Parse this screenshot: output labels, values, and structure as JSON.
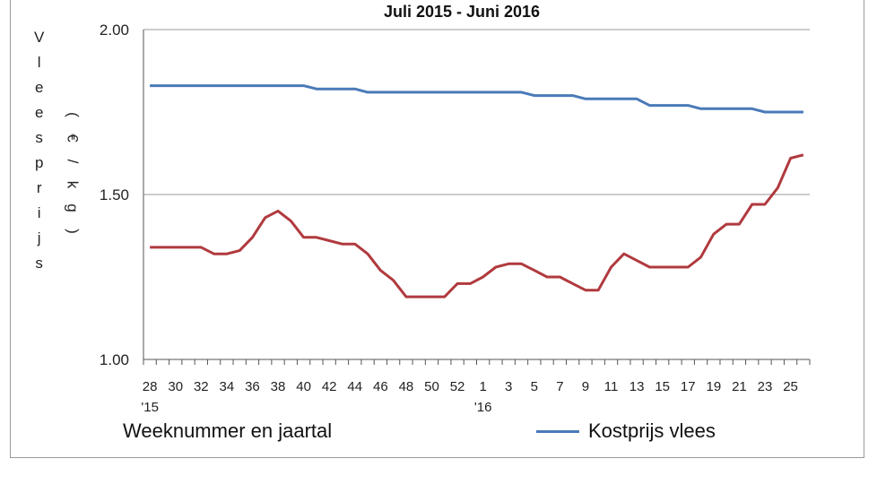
{
  "chart_data": {
    "type": "line",
    "title": "Juli 2015 - Juni 2016",
    "ylabel": "Vleesprijs",
    "yunit": "(€/kg)",
    "xlabel": "Weeknummer en jaartal",
    "ylim": [
      1.0,
      2.0
    ],
    "yticks": [
      "1.00",
      "1.50",
      "2.00"
    ],
    "grid": true,
    "legend_position": "bottom-right",
    "weeks": [
      "28",
      "29",
      "30",
      "31",
      "32",
      "33",
      "34",
      "35",
      "36",
      "37",
      "38",
      "39",
      "40",
      "41",
      "42",
      "43",
      "44",
      "45",
      "46",
      "47",
      "48",
      "49",
      "50",
      "51",
      "52",
      "53",
      "1",
      "2",
      "3",
      "4",
      "5",
      "6",
      "7",
      "8",
      "9",
      "10",
      "11",
      "12",
      "13",
      "14",
      "15",
      "16",
      "17",
      "18",
      "19",
      "20",
      "21",
      "22",
      "23",
      "24",
      "25",
      "26"
    ],
    "xtick_labels": [
      "28",
      "30",
      "32",
      "34",
      "36",
      "38",
      "40",
      "42",
      "44",
      "46",
      "48",
      "50",
      "52",
      "1",
      "3",
      "5",
      "7",
      "9",
      "11",
      "13",
      "15",
      "17",
      "19",
      "21",
      "23",
      "25"
    ],
    "year_labels": [
      "'15",
      "'16"
    ],
    "series": [
      {
        "name": "Kostprijs vlees",
        "color": "#4a7ab8",
        "values": [
          1.83,
          1.83,
          1.83,
          1.83,
          1.83,
          1.83,
          1.83,
          1.83,
          1.83,
          1.83,
          1.83,
          1.83,
          1.83,
          1.82,
          1.82,
          1.82,
          1.82,
          1.81,
          1.81,
          1.81,
          1.81,
          1.81,
          1.81,
          1.81,
          1.81,
          1.81,
          1.81,
          1.81,
          1.81,
          1.81,
          1.8,
          1.8,
          1.8,
          1.8,
          1.79,
          1.79,
          1.79,
          1.79,
          1.79,
          1.77,
          1.77,
          1.77,
          1.77,
          1.76,
          1.76,
          1.76,
          1.76,
          1.76,
          1.75,
          1.75,
          1.75,
          1.75
        ]
      },
      {
        "name": "",
        "color": "#b03a3e",
        "values": [
          1.34,
          1.34,
          1.34,
          1.34,
          1.34,
          1.32,
          1.32,
          1.33,
          1.37,
          1.43,
          1.45,
          1.42,
          1.37,
          1.37,
          1.36,
          1.35,
          1.35,
          1.32,
          1.27,
          1.24,
          1.19,
          1.19,
          1.19,
          1.19,
          1.23,
          1.23,
          1.25,
          1.28,
          1.29,
          1.29,
          1.27,
          1.25,
          1.25,
          1.23,
          1.21,
          1.21,
          1.28,
          1.32,
          1.3,
          1.28,
          1.28,
          1.28,
          1.28,
          1.31,
          1.38,
          1.41,
          1.41,
          1.47,
          1.47,
          1.52,
          1.61,
          1.62
        ]
      }
    ]
  }
}
